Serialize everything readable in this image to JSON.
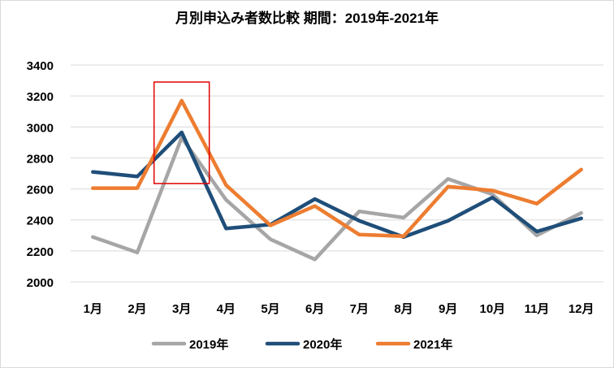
{
  "chart_data": {
    "type": "line",
    "title": "月別申込み者数比較 期間：2019年-2021年",
    "xlabel": "",
    "ylabel": "",
    "categories": [
      "1月",
      "2月",
      "3月",
      "4月",
      "5月",
      "6月",
      "7月",
      "8月",
      "9月",
      "10月",
      "11月",
      "12月"
    ],
    "ylim": [
      2000,
      3400
    ],
    "yticks": [
      2000,
      2200,
      2400,
      2600,
      2800,
      3000,
      3200,
      3400
    ],
    "grid": true,
    "legend_position": "bottom",
    "series": [
      {
        "name": "2019年",
        "color": "#a6a6a6",
        "values": [
          2290,
          2190,
          2930,
          2530,
          2275,
          2145,
          2455,
          2415,
          2665,
          2565,
          2300,
          2445
        ]
      },
      {
        "name": "2020年",
        "color": "#1f4e79",
        "values": [
          2710,
          2680,
          2965,
          2345,
          2370,
          2535,
          2395,
          2290,
          2395,
          2545,
          2325,
          2410
        ]
      },
      {
        "name": "2021年",
        "color": "#ed7d31",
        "values": [
          2605,
          2605,
          3170,
          2625,
          2365,
          2490,
          2305,
          2295,
          2615,
          2590,
          2505,
          2725
        ]
      }
    ],
    "annotation": {
      "type": "highlight-box",
      "color": "#e00000",
      "category": "3月",
      "yrange": [
        2635,
        3290
      ]
    }
  }
}
